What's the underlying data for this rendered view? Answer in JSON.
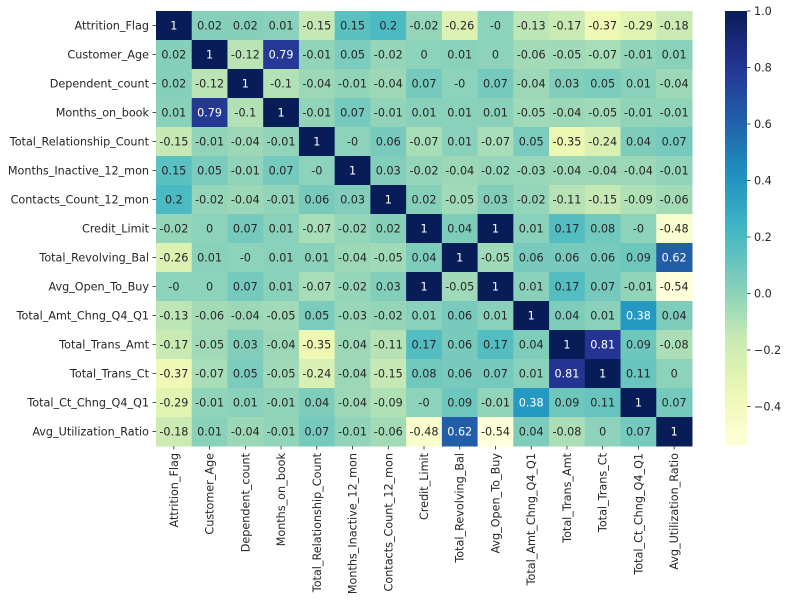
{
  "chart_data": {
    "type": "heatmap",
    "title": "",
    "xlabel": "",
    "ylabel": "",
    "colormap": "YlGnBu",
    "annotated": true,
    "color_range": [
      -0.54,
      1.0
    ],
    "labels": [
      "Attrition_Flag",
      "Customer_Age",
      "Dependent_count",
      "Months_on_book",
      "Total_Relationship_Count",
      "Months_Inactive_12_mon",
      "Contacts_Count_12_mon",
      "Credit_Limit",
      "Total_Revolving_Bal",
      "Avg_Open_To_Buy",
      "Total_Amt_Chng_Q4_Q1",
      "Total_Trans_Amt",
      "Total_Trans_Ct",
      "Total_Ct_Chng_Q4_Q1",
      "Avg_Utilization_Ratio"
    ],
    "matrix": [
      [
        "1",
        "0.02",
        "0.02",
        "0.01",
        "-0.15",
        "0.15",
        "0.2",
        "-0.02",
        "-0.26",
        "-0",
        "-0.13",
        "-0.17",
        "-0.37",
        "-0.29",
        "-0.18"
      ],
      [
        "0.02",
        "1",
        "-0.12",
        "0.79",
        "-0.01",
        "0.05",
        "-0.02",
        "0",
        "0.01",
        "0",
        "-0.06",
        "-0.05",
        "-0.07",
        "-0.01",
        "0.01"
      ],
      [
        "0.02",
        "-0.12",
        "1",
        "-0.1",
        "-0.04",
        "-0.01",
        "-0.04",
        "0.07",
        "-0",
        "0.07",
        "-0.04",
        "0.03",
        "0.05",
        "0.01",
        "-0.04"
      ],
      [
        "0.01",
        "0.79",
        "-0.1",
        "1",
        "-0.01",
        "0.07",
        "-0.01",
        "0.01",
        "0.01",
        "0.01",
        "-0.05",
        "-0.04",
        "-0.05",
        "-0.01",
        "-0.01"
      ],
      [
        "-0.15",
        "-0.01",
        "-0.04",
        "-0.01",
        "1",
        "-0",
        "0.06",
        "-0.07",
        "0.01",
        "-0.07",
        "0.05",
        "-0.35",
        "-0.24",
        "0.04",
        "0.07"
      ],
      [
        "0.15",
        "0.05",
        "-0.01",
        "0.07",
        "-0",
        "1",
        "0.03",
        "-0.02",
        "-0.04",
        "-0.02",
        "-0.03",
        "-0.04",
        "-0.04",
        "-0.04",
        "-0.01"
      ],
      [
        "0.2",
        "-0.02",
        "-0.04",
        "-0.01",
        "0.06",
        "0.03",
        "1",
        "0.02",
        "-0.05",
        "0.03",
        "-0.02",
        "-0.11",
        "-0.15",
        "-0.09",
        "-0.06"
      ],
      [
        "-0.02",
        "0",
        "0.07",
        "0.01",
        "-0.07",
        "-0.02",
        "0.02",
        "1",
        "0.04",
        "1",
        "0.01",
        "0.17",
        "0.08",
        "-0",
        "-0.48"
      ],
      [
        "-0.26",
        "0.01",
        "-0",
        "0.01",
        "0.01",
        "-0.04",
        "-0.05",
        "0.04",
        "1",
        "-0.05",
        "0.06",
        "0.06",
        "0.06",
        "0.09",
        "0.62"
      ],
      [
        "-0",
        "0",
        "0.07",
        "0.01",
        "-0.07",
        "-0.02",
        "0.03",
        "1",
        "-0.05",
        "1",
        "0.01",
        "0.17",
        "0.07",
        "-0.01",
        "-0.54"
      ],
      [
        "-0.13",
        "-0.06",
        "-0.04",
        "-0.05",
        "0.05",
        "-0.03",
        "-0.02",
        "0.01",
        "0.06",
        "0.01",
        "1",
        "0.04",
        "0.01",
        "0.38",
        "0.04"
      ],
      [
        "-0.17",
        "-0.05",
        "0.03",
        "-0.04",
        "-0.35",
        "-0.04",
        "-0.11",
        "0.17",
        "0.06",
        "0.17",
        "0.04",
        "1",
        "0.81",
        "0.09",
        "-0.08"
      ],
      [
        "-0.37",
        "-0.07",
        "0.05",
        "-0.05",
        "-0.24",
        "-0.04",
        "-0.15",
        "0.08",
        "0.06",
        "0.07",
        "0.01",
        "0.81",
        "1",
        "0.11",
        "0"
      ],
      [
        "-0.29",
        "-0.01",
        "0.01",
        "-0.01",
        "0.04",
        "-0.04",
        "-0.09",
        "-0",
        "0.09",
        "-0.01",
        "0.38",
        "0.09",
        "0.11",
        "1",
        "0.07"
      ],
      [
        "-0.18",
        "0.01",
        "-0.04",
        "-0.01",
        "0.07",
        "-0.01",
        "-0.06",
        "-0.48",
        "0.62",
        "-0.54",
        "0.04",
        "-0.08",
        "0",
        "0.07",
        "1"
      ]
    ],
    "colorbar": {
      "ticks": [
        1.0,
        0.8,
        0.6,
        0.4,
        0.2,
        0.0,
        -0.2,
        -0.4
      ],
      "tick_labels": [
        "1.0",
        "0.8",
        "0.6",
        "0.4",
        "0.2",
        "0.0",
        "−0.2",
        "−0.4"
      ]
    },
    "grid": false,
    "legend": "colorbar-right"
  },
  "colors": {
    "text_dark": "#262626",
    "text_light": "#ffffff",
    "background": "#ffffff"
  }
}
